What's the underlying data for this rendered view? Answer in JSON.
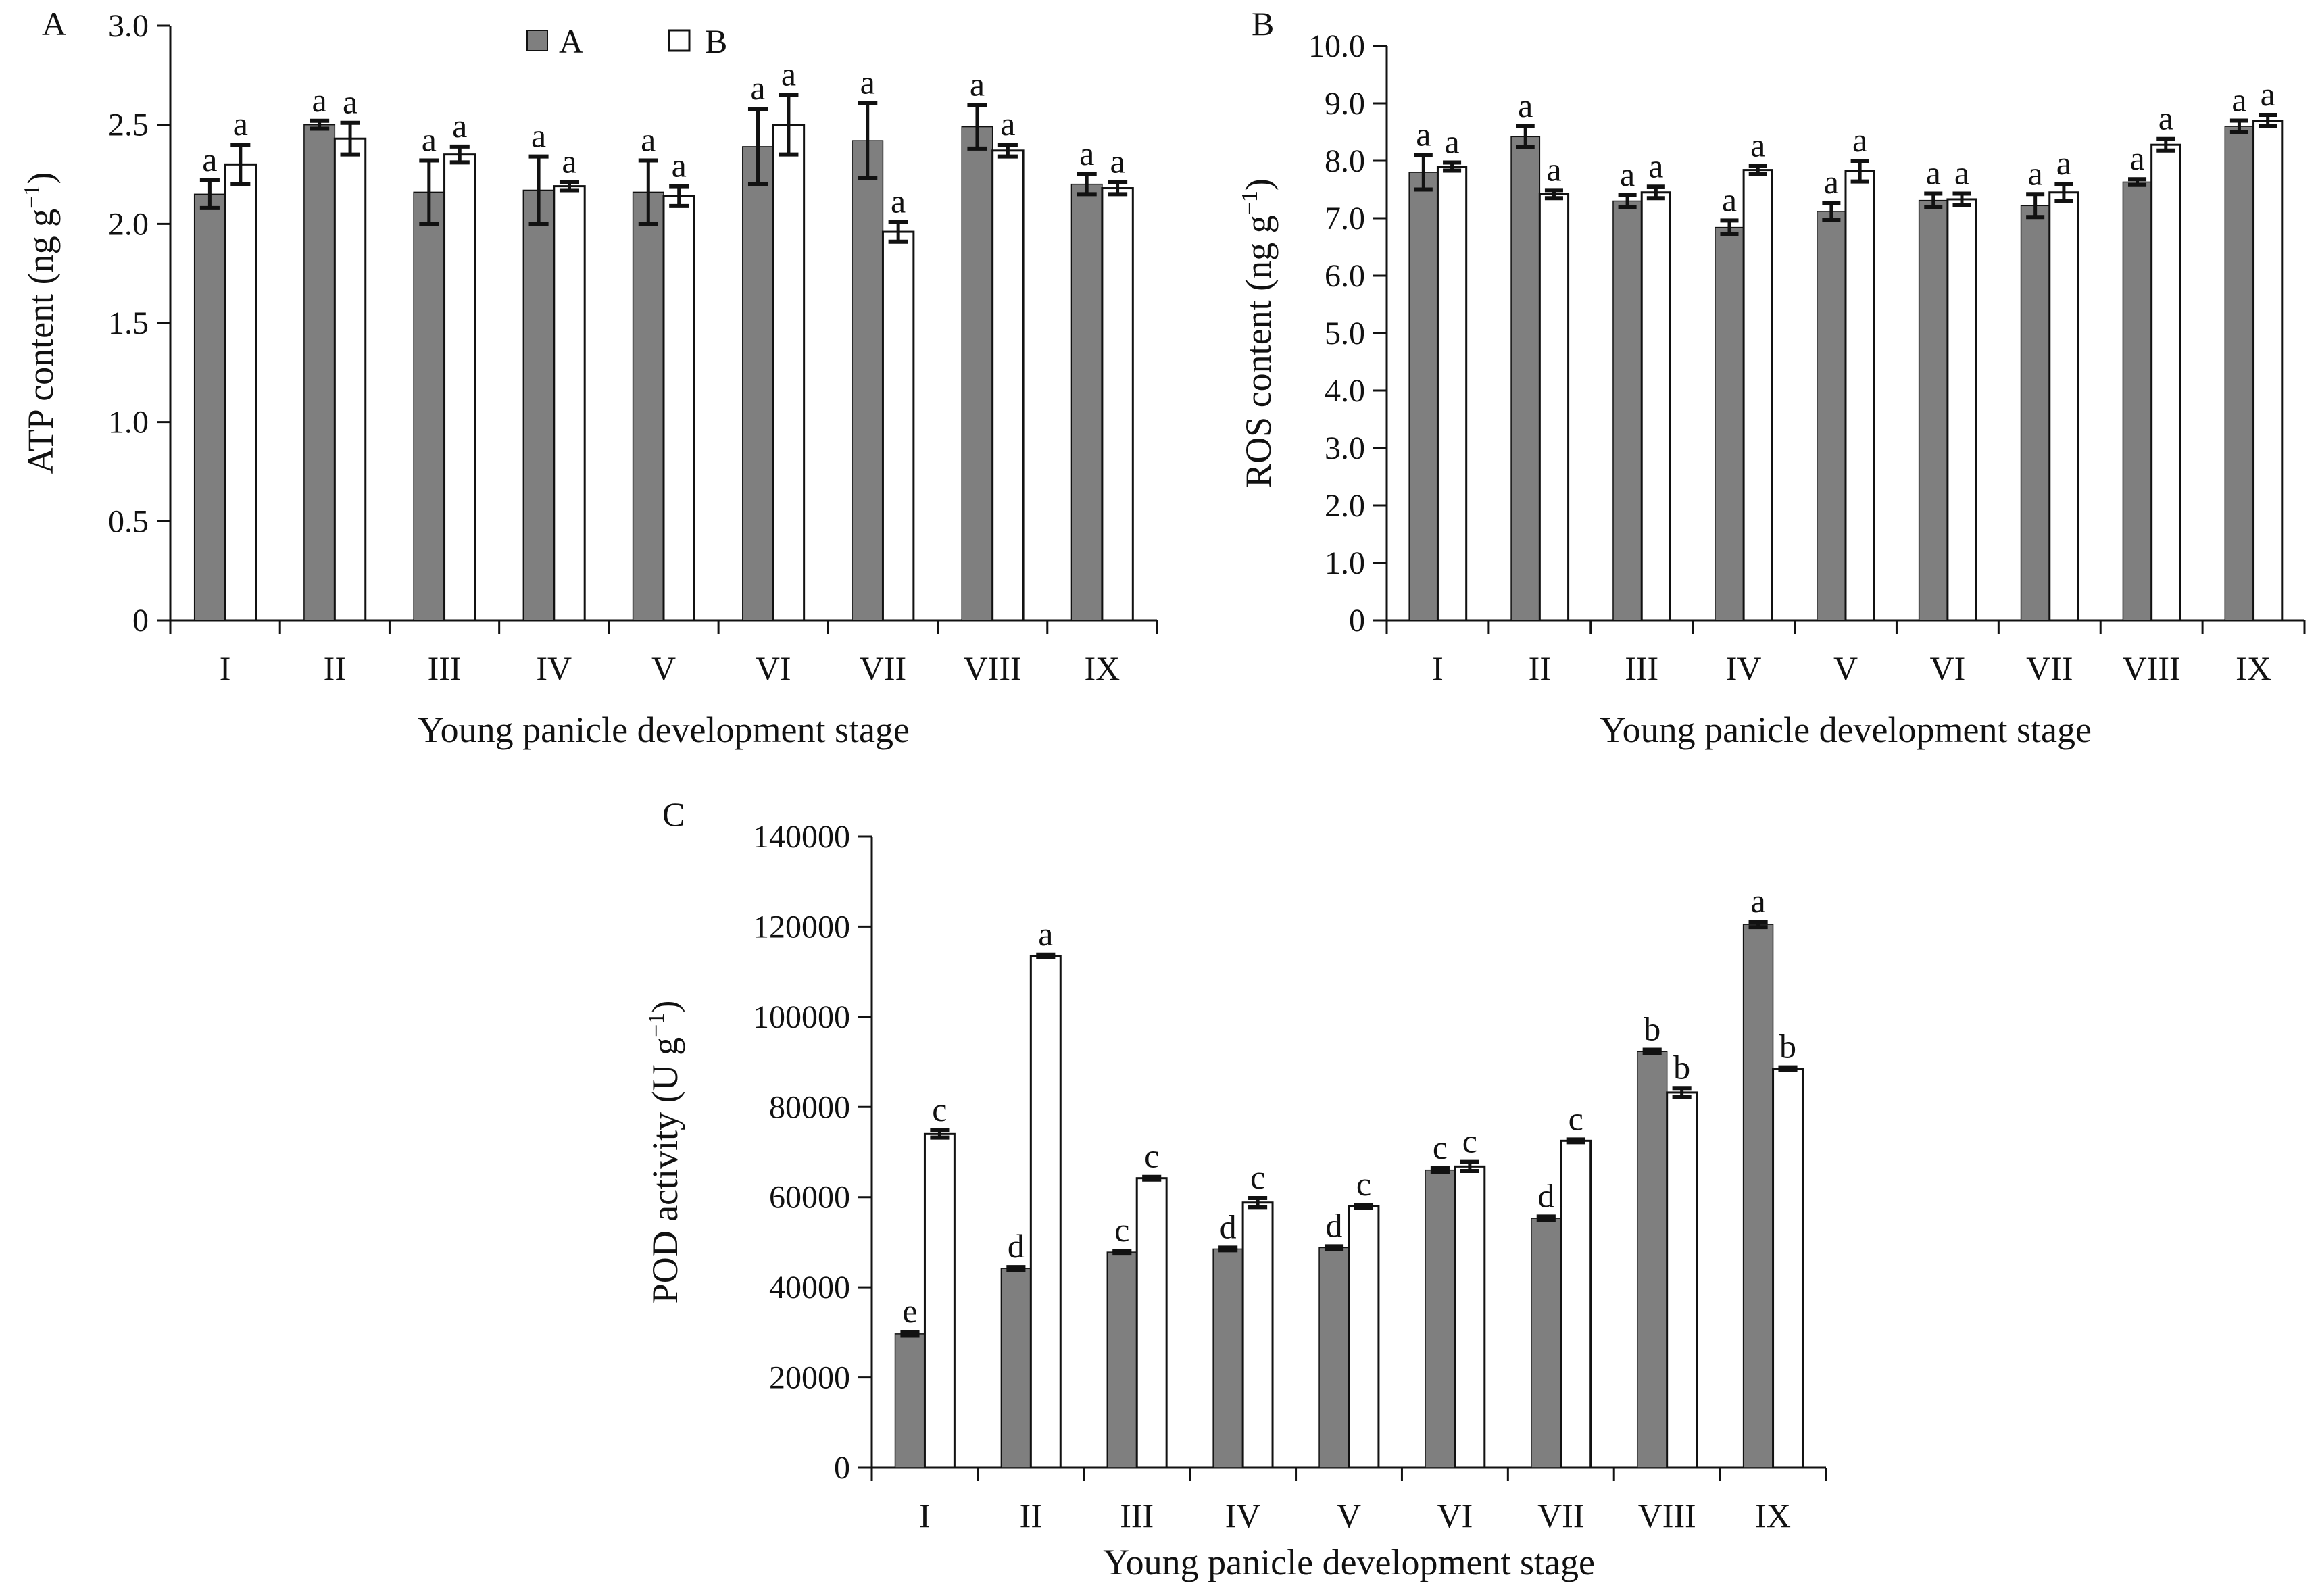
{
  "legend": [
    {
      "name": "A",
      "color": "#7f7f7f"
    },
    {
      "name": "B",
      "color": "#ffffff"
    }
  ],
  "chart_data": [
    {
      "type": "bar",
      "panel_label": "A",
      "categories": [
        "I",
        "II",
        "III",
        "IV",
        "V",
        "VI",
        "VII",
        "VIII",
        "IX"
      ],
      "ylabel_main": "ATP content (ng g",
      "ylabel_sup": "−1",
      "ylabel_end": ")",
      "xlabel": "Young panicle development stage",
      "ylim": [
        0,
        3.0
      ],
      "yticks": [
        "0",
        "0.5",
        "1.0",
        "1.5",
        "2.0",
        "2.5",
        "3.0"
      ],
      "grid": false,
      "legend_position": "top-center",
      "series": [
        {
          "name": "A",
          "color": "#7f7f7f",
          "values": [
            2.15,
            2.5,
            2.16,
            2.17,
            2.16,
            2.39,
            2.42,
            2.49,
            2.2
          ],
          "errors": [
            0.07,
            0.02,
            0.16,
            0.17,
            0.16,
            0.19,
            0.19,
            0.11,
            0.05
          ],
          "letters": [
            "a",
            "a",
            "a",
            "a",
            "a",
            "a",
            "a",
            "a",
            "a"
          ]
        },
        {
          "name": "B",
          "color": "#ffffff",
          "values": [
            2.3,
            2.43,
            2.35,
            2.19,
            2.14,
            2.5,
            1.96,
            2.37,
            2.18
          ],
          "errors": [
            0.1,
            0.08,
            0.04,
            0.02,
            0.05,
            0.15,
            0.05,
            0.03,
            0.03
          ],
          "letters": [
            "a",
            "a",
            "a",
            "a",
            "a",
            "a",
            "a",
            "a",
            "a"
          ]
        }
      ]
    },
    {
      "type": "bar",
      "panel_label": "B",
      "categories": [
        "I",
        "II",
        "III",
        "IV",
        "V",
        "VI",
        "VII",
        "VIII",
        "IX"
      ],
      "ylabel_main": "ROS content (ng g",
      "ylabel_sup": "−1",
      "ylabel_end": ")",
      "xlabel": "Young panicle development stage",
      "ylim": [
        0,
        10.0
      ],
      "yticks": [
        "0",
        "1.0",
        "2.0",
        "3.0",
        "4.0",
        "5.0",
        "6.0",
        "7.0",
        "8.0",
        "9.0",
        "10.0"
      ],
      "grid": false,
      "series": [
        {
          "name": "A",
          "color": "#7f7f7f",
          "values": [
            7.8,
            8.42,
            7.3,
            6.84,
            7.12,
            7.31,
            7.22,
            7.63,
            8.6
          ],
          "errors": [
            0.3,
            0.18,
            0.1,
            0.12,
            0.15,
            0.12,
            0.2,
            0.05,
            0.1
          ],
          "letters": [
            "a",
            "a",
            "a",
            "a",
            "a",
            "a",
            "a",
            "a",
            "a"
          ]
        },
        {
          "name": "B",
          "color": "#ffffff",
          "values": [
            7.9,
            7.42,
            7.45,
            7.84,
            7.82,
            7.33,
            7.45,
            8.28,
            8.7
          ],
          "errors": [
            0.07,
            0.07,
            0.1,
            0.07,
            0.18,
            0.1,
            0.15,
            0.1,
            0.1
          ],
          "letters": [
            "a",
            "a",
            "a",
            "a",
            "a",
            "a",
            "a",
            "a",
            "a"
          ]
        }
      ]
    },
    {
      "type": "bar",
      "panel_label": "C",
      "categories": [
        "I",
        "II",
        "III",
        "IV",
        "V",
        "VI",
        "VII",
        "VIII",
        "IX"
      ],
      "ylabel_main": "POD activity (U g",
      "ylabel_sup": "−1",
      "ylabel_end": ")",
      "xlabel": "Young panicle development stage",
      "ylim": [
        0,
        140000
      ],
      "yticks": [
        "0",
        "20000",
        "40000",
        "60000",
        "80000",
        "100000",
        "120000",
        "140000"
      ],
      "grid": false,
      "series": [
        {
          "name": "A",
          "color": "#7f7f7f",
          "values": [
            29700,
            44200,
            47800,
            48500,
            48800,
            66000,
            55300,
            92300,
            120500
          ],
          "errors": [
            400,
            300,
            300,
            300,
            300,
            400,
            400,
            400,
            600
          ],
          "letters": [
            "e",
            "d",
            "c",
            "d",
            "d",
            "c",
            "d",
            "b",
            "a"
          ]
        },
        {
          "name": "B",
          "color": "#ffffff",
          "values": [
            74000,
            113500,
            64200,
            58800,
            58000,
            66800,
            72500,
            83200,
            88500
          ],
          "errors": [
            800,
            300,
            300,
            1000,
            300,
            1000,
            300,
            1000,
            300
          ],
          "letters": [
            "c",
            "a",
            "c",
            "c",
            "c",
            "c",
            "c",
            "b",
            "b"
          ]
        }
      ]
    }
  ]
}
